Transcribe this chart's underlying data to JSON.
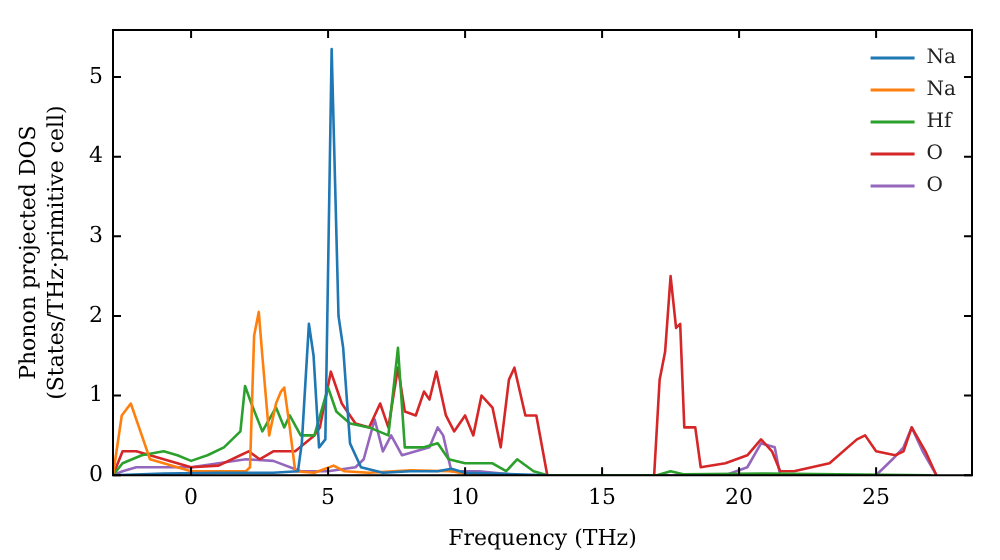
{
  "chart_data": {
    "type": "line",
    "xlabel": "Frequency (THz)",
    "ylabel": "Phonon projected DOS\n(States/THz·primitive cell)",
    "xlim": [
      -2.85,
      28.5
    ],
    "ylim": [
      0,
      5.59
    ],
    "xticks": [
      0,
      5,
      10,
      15,
      20,
      25
    ],
    "yticks": [
      0,
      1,
      2,
      3,
      4,
      5
    ],
    "grid": false,
    "legend": "top right",
    "marker": "none",
    "line_style": "solid",
    "series": [
      {
        "name": "Na",
        "color": "#1f77b4",
        "x": [
          -2.85,
          -1,
          1,
          3,
          3.9,
          4.04,
          4.3,
          4.47,
          4.67,
          4.9,
          5.13,
          5.38,
          5.55,
          5.8,
          6.2,
          7,
          8,
          9,
          9.5,
          10,
          11,
          13
        ],
        "values": [
          0,
          0.02,
          0.03,
          0.03,
          0.05,
          0.4,
          1.9,
          1.5,
          0.35,
          0.45,
          5.35,
          2.0,
          1.6,
          0.4,
          0.1,
          0.03,
          0.05,
          0.05,
          0.08,
          0.03,
          0.02,
          0
        ]
      },
      {
        "name": "Na",
        "color": "#ff7f0e",
        "x": [
          -2.85,
          -2.53,
          -2.2,
          -1.9,
          -1.5,
          0,
          1,
          2.0,
          2.15,
          2.3,
          2.47,
          2.6,
          2.85,
          3.1,
          3.28,
          3.4,
          3.6,
          3.8,
          4.5,
          5.2,
          5.6,
          6.5,
          8,
          9.5,
          10,
          12
        ],
        "values": [
          0,
          0.75,
          0.9,
          0.6,
          0.2,
          0.05,
          0.05,
          0.05,
          0.1,
          1.75,
          2.05,
          1.5,
          0.5,
          0.9,
          1.05,
          1.1,
          0.6,
          0.05,
          0.03,
          0.12,
          0.05,
          0.03,
          0.06,
          0.05,
          0.02,
          0
        ]
      },
      {
        "name": "Hf",
        "color": "#2ca02c",
        "x": [
          -2.85,
          -2.5,
          -1.8,
          -1,
          -0.5,
          0,
          0.6,
          1.2,
          1.8,
          1.97,
          2.2,
          2.6,
          3.1,
          3.4,
          3.6,
          4,
          4.5,
          5.0,
          5.3,
          5.8,
          6.5,
          7.2,
          7.55,
          7.8,
          8.5,
          9.0,
          9.4,
          10,
          11,
          11.5,
          11.9,
          12.5,
          13,
          17,
          17.5,
          18,
          21,
          27
        ],
        "values": [
          0,
          0.15,
          0.25,
          0.3,
          0.25,
          0.18,
          0.25,
          0.35,
          0.55,
          1.12,
          0.9,
          0.55,
          0.85,
          0.6,
          0.75,
          0.5,
          0.5,
          1.1,
          0.8,
          0.65,
          0.6,
          0.5,
          1.6,
          0.35,
          0.35,
          0.4,
          0.2,
          0.15,
          0.15,
          0.05,
          0.2,
          0.05,
          0,
          0,
          0.05,
          0.01,
          0.02,
          0
        ]
      },
      {
        "name": "O",
        "color": "#d62728",
        "x": [
          -2.85,
          -2.5,
          -2,
          -1,
          0,
          1,
          1.8,
          2.1,
          2.5,
          3,
          3.8,
          4.5,
          4.7,
          5.1,
          5.5,
          6,
          6.5,
          6.9,
          7.2,
          7.55,
          7.8,
          8.2,
          8.5,
          8.7,
          8.95,
          9.3,
          9.6,
          10,
          10.3,
          10.6,
          11,
          11.3,
          11.6,
          11.8,
          12.2,
          12.6,
          13,
          16.9,
          17.1,
          17.3,
          17.5,
          17.7,
          17.85,
          18.0,
          18.4,
          18.6,
          19.5,
          20.3,
          20.8,
          21.2,
          21.5,
          22,
          23.3,
          24.3,
          24.6,
          25,
          25.7,
          26,
          26.3,
          26.8,
          27.2
        ],
        "values": [
          0,
          0.3,
          0.3,
          0.2,
          0.1,
          0.12,
          0.25,
          0.3,
          0.2,
          0.3,
          0.3,
          0.5,
          0.6,
          1.3,
          0.9,
          0.65,
          0.6,
          0.9,
          0.6,
          1.35,
          0.8,
          0.75,
          1.05,
          0.95,
          1.3,
          0.75,
          0.55,
          0.75,
          0.5,
          1.0,
          0.85,
          0.35,
          1.2,
          1.35,
          0.75,
          0.75,
          0,
          0,
          1.2,
          1.55,
          2.5,
          1.85,
          1.9,
          0.6,
          0.6,
          0.1,
          0.15,
          0.25,
          0.45,
          0.3,
          0.05,
          0.05,
          0.15,
          0.45,
          0.5,
          0.3,
          0.25,
          0.3,
          0.6,
          0.3,
          0
        ]
      },
      {
        "name": "O",
        "color": "#9467bd",
        "x": [
          -2.85,
          -2.5,
          -2,
          0,
          1,
          2,
          3,
          4,
          5,
          6,
          6.3,
          6.7,
          7,
          7.3,
          7.7,
          8.2,
          8.7,
          9.0,
          9.2,
          9.5,
          10.5,
          12,
          19.5,
          20.3,
          20.8,
          21.3,
          21.5,
          25,
          25.6,
          26,
          26.3,
          26.7,
          27.2
        ],
        "values": [
          0,
          0.05,
          0.1,
          0.1,
          0.15,
          0.2,
          0.18,
          0.05,
          0.05,
          0.1,
          0.2,
          0.7,
          0.3,
          0.5,
          0.25,
          0.3,
          0.35,
          0.6,
          0.5,
          0.05,
          0.05,
          0,
          0,
          0.1,
          0.4,
          0.35,
          0,
          0,
          0.2,
          0.35,
          0.6,
          0.3,
          0
        ]
      }
    ]
  }
}
